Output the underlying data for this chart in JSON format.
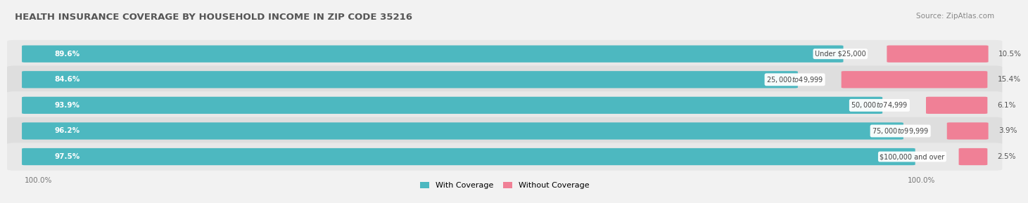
{
  "title": "HEALTH INSURANCE COVERAGE BY HOUSEHOLD INCOME IN ZIP CODE 35216",
  "source": "Source: ZipAtlas.com",
  "categories": [
    "Under $25,000",
    "$25,000 to $49,999",
    "$50,000 to $74,999",
    "$75,000 to $99,999",
    "$100,000 and over"
  ],
  "with_coverage": [
    89.6,
    84.6,
    93.9,
    96.2,
    97.5
  ],
  "without_coverage": [
    10.5,
    15.4,
    6.1,
    3.9,
    2.5
  ],
  "color_with": "#4db8c0",
  "color_without": "#f08096",
  "figure_bg": "#f2f2f2",
  "row_bg_light": "#e8e8e8",
  "row_bg_dark": "#dedede",
  "title_fontsize": 9.5,
  "label_fontsize": 7.5,
  "tick_fontsize": 7.5,
  "source_fontsize": 7.5,
  "legend_fontsize": 8
}
